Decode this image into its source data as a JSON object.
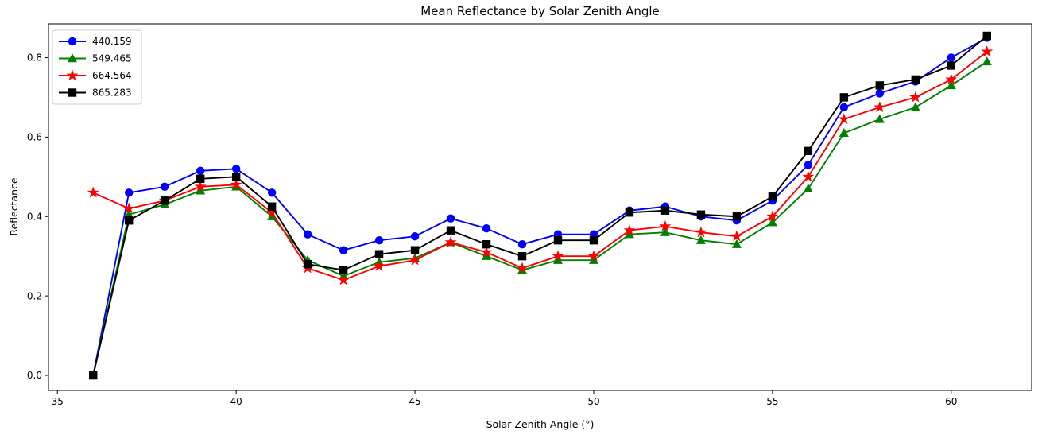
{
  "chart_data": {
    "type": "line",
    "title": "Mean Reflectance by Solar Zenith Angle",
    "xlabel": "Solar Zenith Angle (°)",
    "ylabel": "Reflectance",
    "background_color": "#ffffff",
    "grid": false,
    "legend_position": "upper left",
    "xlim": [
      34.75,
      62.25
    ],
    "ylim": [
      -0.038,
      0.885
    ],
    "xticks": [
      "35",
      "40",
      "45",
      "50",
      "55",
      "60"
    ],
    "xtick_values": [
      35,
      40,
      45,
      50,
      55,
      60
    ],
    "yticks": [
      "0.0",
      "0.2",
      "0.4",
      "0.6",
      "0.8"
    ],
    "ytick_values": [
      0.0,
      0.2,
      0.4,
      0.6,
      0.8
    ],
    "x": [
      36,
      37,
      38,
      39,
      40,
      41,
      42,
      43,
      44,
      45,
      46,
      47,
      48,
      49,
      50,
      51,
      52,
      53,
      54,
      55,
      56,
      57,
      58,
      59,
      60,
      61
    ],
    "series": [
      {
        "name": "440.159",
        "color": "#0000ff",
        "marker": "circle",
        "values": [
          0.0,
          0.46,
          0.475,
          0.515,
          0.52,
          0.46,
          0.355,
          0.315,
          0.34,
          0.35,
          0.395,
          0.37,
          0.33,
          0.355,
          0.355,
          0.415,
          0.425,
          0.4,
          0.39,
          0.44,
          0.53,
          0.675,
          0.71,
          0.74,
          0.8,
          0.85
        ]
      },
      {
        "name": "549.465",
        "color": "#008000",
        "marker": "triangle",
        "values": [
          0.0,
          0.405,
          0.43,
          0.465,
          0.475,
          0.4,
          0.29,
          0.25,
          0.285,
          0.295,
          0.335,
          0.3,
          0.265,
          0.29,
          0.29,
          0.355,
          0.36,
          0.34,
          0.33,
          0.385,
          0.47,
          0.61,
          0.645,
          0.675,
          0.73,
          0.79
        ]
      },
      {
        "name": "664.564",
        "color": "#ff0000",
        "marker": "star",
        "values": [
          0.46,
          0.42,
          0.44,
          0.475,
          0.48,
          0.41,
          0.27,
          0.24,
          0.275,
          0.29,
          0.335,
          0.31,
          0.27,
          0.3,
          0.3,
          0.365,
          0.375,
          0.36,
          0.35,
          0.4,
          0.5,
          0.645,
          0.675,
          0.7,
          0.745,
          0.815
        ]
      },
      {
        "name": "865.283",
        "color": "#000000",
        "marker": "square",
        "values": [
          0.0,
          0.39,
          0.44,
          0.495,
          0.5,
          0.425,
          0.28,
          0.265,
          0.305,
          0.315,
          0.365,
          0.33,
          0.3,
          0.34,
          0.34,
          0.41,
          0.415,
          0.405,
          0.4,
          0.45,
          0.565,
          0.7,
          0.73,
          0.745,
          0.78,
          0.855
        ]
      }
    ]
  }
}
